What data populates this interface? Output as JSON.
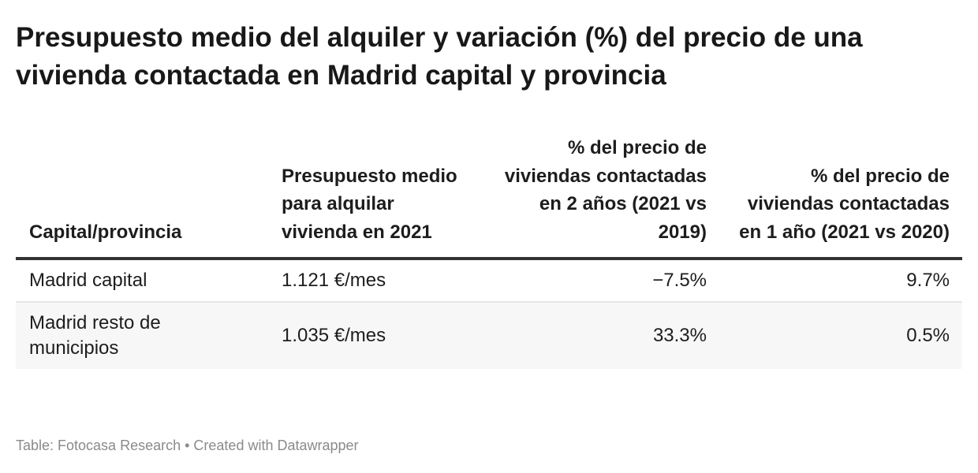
{
  "title": "Presupuesto medio del alquiler y variación (%) del precio de una vivienda contactada en Madrid capital y provincia",
  "table": {
    "headers": [
      "Capital/provincia",
      "Presupuesto medio para alquilar vivienda en 2021",
      "% del precio de viviendas contactadas en 2 años (2021 vs 2019)",
      "% del precio de viviendas contactadas en 1 año (2021 vs 2020)"
    ],
    "rows": [
      [
        "Madrid capital",
        "1.121 €/mes",
        "−7.5%",
        "9.7%"
      ],
      [
        "Madrid resto de municipios",
        "1.035 €/mes",
        "33.3%",
        "0.5%"
      ]
    ]
  },
  "footer": "Table: Fotocasa Research • Created with Datawrapper"
}
